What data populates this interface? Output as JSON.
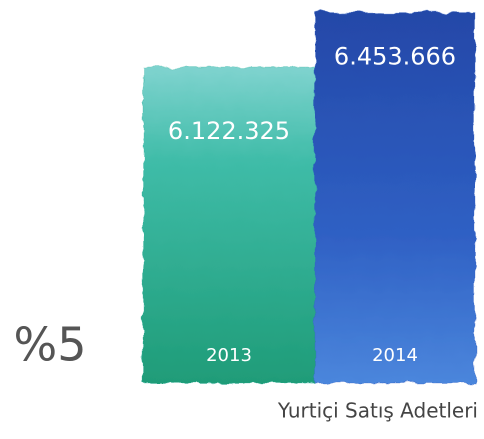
{
  "chart_data": {
    "type": "bar",
    "categories": [
      "2013",
      "2014"
    ],
    "values": [
      6122325,
      6453666
    ],
    "value_labels": [
      "6.122.325",
      "6.453.666"
    ],
    "colors": [
      "#2fb09a",
      "#2d5dbf"
    ],
    "ylim": [
      4200000,
      6500000
    ],
    "annotation": "%5",
    "caption": "Yurtiçi Satış Adetleri"
  }
}
